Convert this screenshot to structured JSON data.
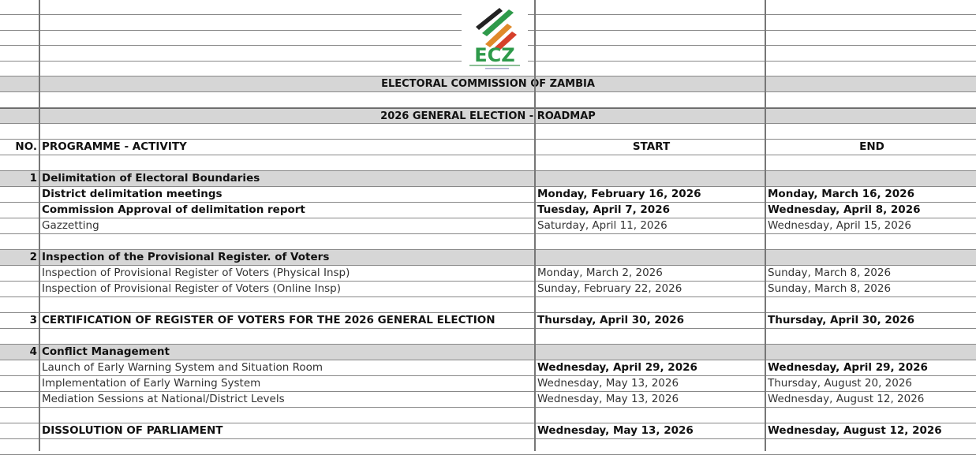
{
  "logo": {
    "text": "ECZ",
    "colors": {
      "green": "#2e9a4a",
      "black": "#222222",
      "orange": "#e08a2a",
      "red": "#d6402a"
    }
  },
  "titles": {
    "organization": "ELECTORAL COMMISSION OF ZAMBIA",
    "roadmap": "2026 GENERAL ELECTION - ROADMAP"
  },
  "header": {
    "no": "NO.",
    "activity": "PROGRAMME -  ACTIVITY",
    "start": "START",
    "end": "END"
  },
  "rows": [
    {
      "no": "1",
      "activity": "Delimitation of Electoral Boundaries",
      "start": "",
      "end": "",
      "type": "section"
    },
    {
      "no": "",
      "activity": "District delimitation meetings",
      "start": "Monday, February 16, 2026",
      "end": "Monday, March 16, 2026",
      "type": "bold"
    },
    {
      "no": "",
      "activity": "Commission Approval of delimitation report",
      "start": "Tuesday, April 7, 2026",
      "end": "Wednesday, April 8, 2026",
      "type": "bold"
    },
    {
      "no": "",
      "activity": "Gazzetting",
      "start": "Saturday, April 11, 2026",
      "end": "Wednesday, April 15, 2026",
      "type": "normal"
    },
    {
      "type": "blank"
    },
    {
      "no": "2",
      "activity": "Inspection of the Provisional Register. of Voters",
      "start": "",
      "end": "",
      "type": "section"
    },
    {
      "no": "",
      "activity": "Inspection of Provisional Register of Voters (Physical Insp)",
      "start": "Monday, March 2, 2026",
      "end": "Sunday, March 8, 2026",
      "type": "normal"
    },
    {
      "no": "",
      "activity": "Inspection of Provisional Register of Voters (Online Insp)",
      "start": "Sunday, February 22, 2026",
      "end": "Sunday, March 8, 2026",
      "type": "normal"
    },
    {
      "type": "blank"
    },
    {
      "no": "3",
      "activity": "CERTIFICATION OF REGISTER OF VOTERS FOR THE 2026 GENERAL ELECTION",
      "start": "Thursday, April 30, 2026",
      "end": "Thursday, April 30, 2026",
      "type": "boldplain"
    },
    {
      "type": "blank"
    },
    {
      "no": "4",
      "activity": "Conflict Management",
      "start": "",
      "end": "",
      "type": "section"
    },
    {
      "no": "",
      "activity": "Launch of Early Warning System and Situation Room",
      "start": "Wednesday, April 29, 2026",
      "end": "Wednesday, April 29, 2026",
      "type": "datesbold"
    },
    {
      "no": "",
      "activity": "Implementation of Early Warning System",
      "start": "Wednesday, May 13, 2026",
      "end": "Thursday, August 20, 2026",
      "type": "normal"
    },
    {
      "no": "",
      "activity": "Mediation Sessions at National/District Levels",
      "start": "Wednesday, May 13, 2026",
      "end": "Wednesday, August 12, 2026",
      "type": "normal"
    },
    {
      "type": "blank"
    },
    {
      "no": "",
      "activity": "DISSOLUTION OF PARLIAMENT",
      "start": "Wednesday, May 13, 2026",
      "end": "Wednesday, August 12, 2026",
      "type": "boldplain"
    }
  ]
}
